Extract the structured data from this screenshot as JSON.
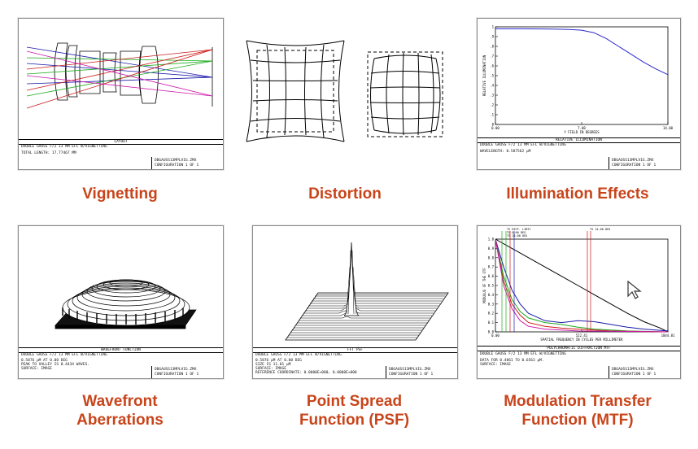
{
  "captions": {
    "vignetting": "Vignetting",
    "distortion": "Distortion",
    "illumination": "Illumination Effects",
    "wavefront_line1": "Wavefront",
    "wavefront_line2": "Aberrations",
    "psf_line1": "Point Spread",
    "psf_line2": "Function (PSF)",
    "mtf_line1": "Modulation Transfer",
    "mtf_line2": "Function (MTF)"
  },
  "layout_panel": {
    "title": "LAYOUT",
    "line1": "DOUBLE GAUSS F/2 13 MM EFL W/VIGNETTING",
    "line2": "TOTAL LENGTH:    17.77467 MM",
    "file": "DBGAUSS13MPLVIG.ZMX",
    "config": "CONFIGURATION  1 OF 1"
  },
  "illum_panel": {
    "title": "RELATIVE ILLUMINATION",
    "line1": "DOUBLE GAUSS F/2 13 MM EFL W/VIGNETTING",
    "line2": "WAVELENGTH:  0.587562 µM",
    "file": "DBGAUSS13MPLVIG.ZMX",
    "config": "CONFIGURATION  1 OF 1"
  },
  "wave_panel": {
    "title": "WAVEFRONT FUNCTION",
    "line1": "DOUBLE GAUSS F/2 13 MM EFL W/VIGNETTING",
    "line2": "0.5876 µM AT 0.00 DEG",
    "line3": "PEAK TO VALLEY IS 0.4434 WAVES.",
    "line4": "SURFACE: IMAGE",
    "file": "DBGAUSS13MPLVIG.ZMX",
    "config": "CONFIGURATION  1 OF 1"
  },
  "psf_panel": {
    "title": "FFT PSF",
    "line1": "DOUBLE GAUSS F/2 13 MM EFL W/VIGNETTING",
    "line2": "0.5876 µM AT 0.00 DEG",
    "line3": "SIZE IS 11.01 µM",
    "line4": "SURFACE: IMAGE",
    "line5": "REFERENCE COORDINATE: 0.0000E+000, 0.0000E+000",
    "file": "DBGAUSS13MPLVIG.ZMX",
    "config": "CONFIGURATION  1 OF 1"
  },
  "mtf_panel": {
    "title": "POLYCHROMATIC DIFFRACTION MTF",
    "line1": "DOUBLE GAUSS F/2 13 MM EFL W/VIGNETTING",
    "line2": "DATA FOR 0.4861 TO 0.6563 µM.",
    "line3": "SURFACE: IMAGE",
    "file": "DBGAUSS13MPLVIG.ZMX",
    "config": "CONFIGURATION  1 OF 1",
    "top_labels": [
      "TS DIFF. LIMIT",
      "TS 0.00 DEG",
      "TS 10.00 DEG",
      "TS 14.00 DEG"
    ]
  },
  "chart_data": [
    {
      "type": "line",
      "title": "RELATIVE ILLUMINATION",
      "xlabel": "Y FIELD IN DEGREES",
      "ylabel": "RELATIVE ILLUMINATION",
      "x_ticks": [
        "0.00",
        "7.00",
        "14.00"
      ],
      "y_ticks": [
        "0",
        ".1",
        ".2",
        ".3",
        ".4",
        ".5",
        ".6",
        ".7",
        ".8",
        ".9",
        "1"
      ],
      "xlim": [
        0,
        14
      ],
      "ylim": [
        0,
        1
      ],
      "series": [
        {
          "color": "#2a2acc",
          "x": [
            0,
            1,
            2,
            3,
            4,
            5,
            6,
            7,
            8,
            9,
            10,
            11,
            12,
            13,
            14
          ],
          "y": [
            0.98,
            0.98,
            0.98,
            0.979,
            0.978,
            0.976,
            0.973,
            0.966,
            0.94,
            0.88,
            0.8,
            0.72,
            0.64,
            0.57,
            0.51
          ]
        }
      ]
    },
    {
      "type": "line",
      "title": "POLYCHROMATIC DIFFRACTION MTF",
      "xlabel": "SPATIAL FREQUENCY IN CYCLES PER MILLIMETER",
      "ylabel": "MODULUS OF THE OTF",
      "x_ticks": [
        "0.00",
        "522.41",
        "1044.81"
      ],
      "y_ticks": [
        "0.0",
        "0.1",
        "0.2",
        "0.3",
        "0.4",
        "0.5",
        "0.6",
        "0.7",
        "0.8",
        "0.9",
        "1.0"
      ],
      "xlim": [
        0,
        1044.81
      ],
      "ylim": [
        0,
        1
      ],
      "series": [
        {
          "color": "#000000",
          "x": [
            0,
            100,
            200,
            300,
            400,
            500,
            600,
            700,
            800,
            900,
            1000,
            1044.81
          ],
          "y": [
            1,
            0.9,
            0.8,
            0.7,
            0.6,
            0.5,
            0.4,
            0.3,
            0.2,
            0.11,
            0.04,
            0
          ]
        },
        {
          "color": "#1a1aaa",
          "x": [
            0,
            50,
            100,
            150,
            200,
            300,
            400,
            500,
            600,
            700,
            800,
            900,
            1044.81
          ],
          "y": [
            1,
            0.7,
            0.45,
            0.3,
            0.2,
            0.12,
            0.1,
            0.12,
            0.11,
            0.08,
            0.05,
            0.03,
            0.01
          ]
        },
        {
          "color": "#1aaa1a",
          "x": [
            0,
            50,
            100,
            150,
            200,
            300,
            400,
            500,
            600,
            700,
            800,
            1044.81
          ],
          "y": [
            1,
            0.6,
            0.35,
            0.22,
            0.15,
            0.1,
            0.08,
            0.05,
            0.03,
            0.02,
            0.01,
            0
          ]
        },
        {
          "color": "#cc1a1a",
          "x": [
            0,
            50,
            100,
            150,
            200,
            300,
            400,
            500,
            600,
            700,
            1044.81
          ],
          "y": [
            1,
            0.55,
            0.3,
            0.18,
            0.1,
            0.06,
            0.04,
            0.03,
            0.02,
            0.01,
            0
          ]
        },
        {
          "color": "#cc1aaa",
          "x": [
            0,
            50,
            100,
            150,
            200,
            300,
            400,
            500,
            1044.81
          ],
          "y": [
            1,
            0.5,
            0.25,
            0.12,
            0.06,
            0.03,
            0.02,
            0.01,
            0
          ]
        }
      ]
    }
  ]
}
